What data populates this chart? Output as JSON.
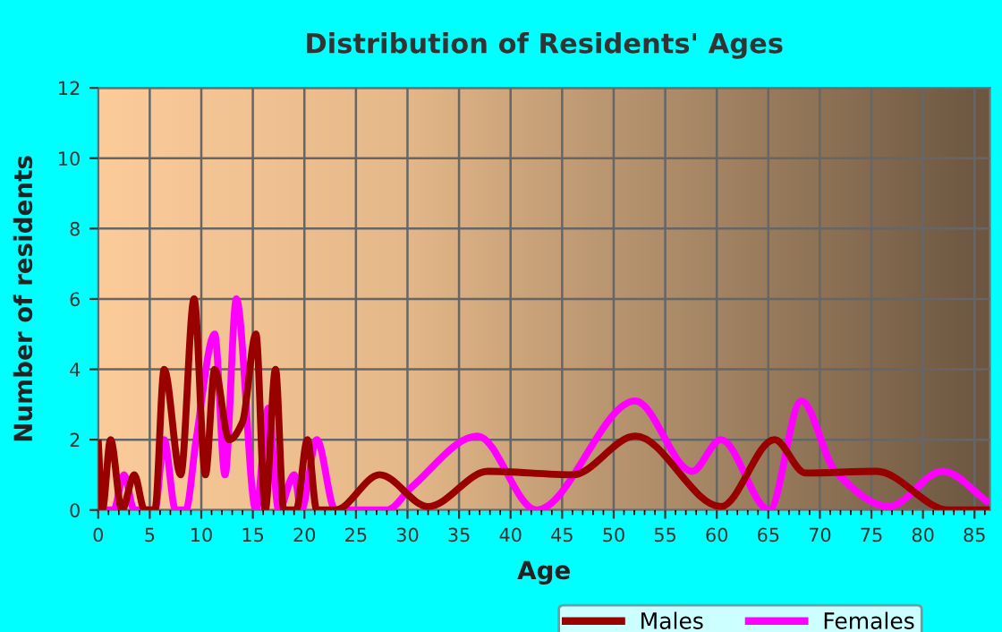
{
  "chart_data": {
    "type": "line",
    "title": "Distribution of Residents' Ages",
    "xlabel": "Age",
    "ylabel": "Number of residents",
    "xlim": [
      0,
      86.5
    ],
    "xticks": [
      0,
      5,
      10,
      15,
      20,
      25,
      30,
      35,
      40,
      45,
      50,
      55,
      60,
      65,
      70,
      75,
      80,
      85
    ],
    "ylim": [
      0,
      12
    ],
    "yticks": [
      0,
      2,
      4,
      6,
      8,
      10,
      12
    ],
    "grid": true,
    "legend": "bottom",
    "series": [
      {
        "name": "Males",
        "color": "#990000",
        "x": [
          0,
          0.4,
          1.2,
          2.3,
          3.5,
          4.5,
          5.5,
          6.4,
          8,
          9.3,
          10.4,
          11.3,
          12.7,
          14,
          15.3,
          16.2,
          17.2,
          18,
          19.2,
          20.3,
          21.2,
          23,
          27.3,
          32,
          37.8,
          46,
          52.1,
          60.4,
          65.6,
          68.6,
          75.5,
          82.5,
          86.5
        ],
        "values": [
          2,
          0,
          2,
          0,
          1,
          0,
          0,
          4,
          1,
          6,
          1,
          4,
          2,
          2.5,
          5,
          0,
          4,
          0,
          0,
          2,
          0,
          0,
          1,
          0.1,
          1.1,
          1,
          2.1,
          0.1,
          2,
          1.05,
          1.1,
          0,
          0
        ]
      },
      {
        "name": "Females",
        "color": "#ff00ff",
        "x": [
          0,
          1.5,
          2.5,
          3.5,
          5.5,
          6.4,
          7.5,
          8.5,
          9.5,
          11.3,
          12.3,
          13.4,
          15.3,
          16.5,
          17.5,
          19,
          19.7,
          21.2,
          23,
          28,
          30.4,
          36.8,
          42.5,
          52.1,
          57.6,
          60.4,
          65.1,
          68.2,
          71.5,
          76.7,
          81.9,
          86.4
        ],
        "values": [
          0,
          0,
          1,
          0,
          0,
          2,
          0,
          0,
          2,
          5,
          1,
          6,
          0,
          2.9,
          0,
          1,
          0,
          2,
          0,
          0,
          0.65,
          2.1,
          0,
          3.1,
          1.1,
          2,
          0,
          3.1,
          1.1,
          0.1,
          1.1,
          0.2
        ]
      }
    ]
  }
}
